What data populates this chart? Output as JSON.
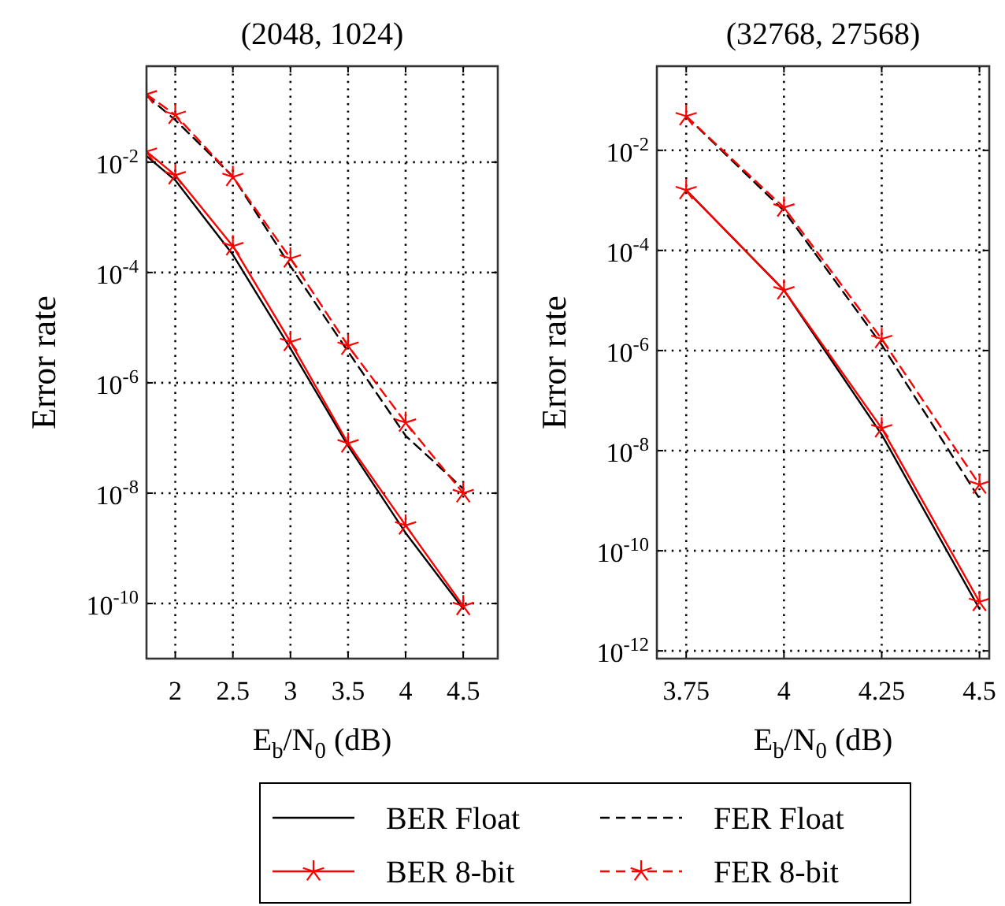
{
  "chart_data": [
    {
      "type": "line",
      "title": "(2048, 1024)",
      "xlabel": "E$_{b}$/N$_{0}$ (dB)",
      "ylabel": "Error rate",
      "log": "y",
      "grid": true,
      "legend": "bottom",
      "xlim": [
        1.75,
        4.8
      ],
      "ylim": [
        1e-11,
        0.55
      ],
      "xticks": [
        2,
        2.5,
        3,
        3.5,
        4,
        4.5
      ],
      "yticks": [
        {
          "value": 0.01,
          "label": "10$^{-2}$"
        },
        {
          "value": 0.0001,
          "label": "10$^{-4}$"
        },
        {
          "value": 1e-06,
          "label": "10$^{-6}$"
        },
        {
          "value": 1e-08,
          "label": "10$^{-8}$"
        },
        {
          "value": 1e-10,
          "label": "10$^{-10}$"
        }
      ],
      "x": [
        1.75,
        2,
        2.5,
        3,
        3.5,
        4,
        4.5
      ],
      "series": [
        {
          "name": "BER Float",
          "color": "#000000",
          "line_style": "solid",
          "marker": "none",
          "values": [
            0.013,
            0.0047,
            0.00021,
            4.2e-06,
            7.2e-08,
            1.9e-09,
            8e-11
          ]
        },
        {
          "name": "FER Float",
          "color": "#000000",
          "line_style": "dashed",
          "marker": "none",
          "values": [
            0.16,
            0.058,
            0.0055,
            0.00013,
            3.7e-06,
            1.1e-07,
            1.2e-08
          ]
        },
        {
          "name": "BER 8-bit",
          "color": "#ff0000",
          "line_style": "solid",
          "marker": "cross",
          "values": [
            0.0155,
            0.0058,
            0.0003,
            5.5e-06,
            8e-08,
            2.6e-09,
            9e-11
          ]
        },
        {
          "name": "FER 8-bit",
          "color": "#ff0000",
          "line_style": "dashed",
          "marker": "cross",
          "values": [
            0.17,
            0.072,
            0.0054,
            0.00018,
            4.7e-06,
            1.9e-07,
            1e-08
          ]
        }
      ]
    },
    {
      "type": "line",
      "title": "(32768, 27568)",
      "xlabel": "E$_{b}$/N$_{0}$ (dB)",
      "ylabel": "Error rate",
      "log": "y",
      "grid": true,
      "xlim": [
        3.675,
        4.525
      ],
      "ylim": [
        7e-13,
        0.48
      ],
      "xticks": [
        3.75,
        4,
        4.25,
        4.5
      ],
      "yticks": [
        {
          "value": 0.01,
          "label": "10$^{-2}$"
        },
        {
          "value": 0.0001,
          "label": "10$^{-4}$"
        },
        {
          "value": 1e-06,
          "label": "10$^{-6}$"
        },
        {
          "value": 1e-08,
          "label": "10$^{-8}$"
        },
        {
          "value": 1e-10,
          "label": "10$^{-10}$"
        },
        {
          "value": 1e-12,
          "label": "10$^{-12}$"
        }
      ],
      "x": [
        3.75,
        4,
        4.25,
        4.5
      ],
      "series": [
        {
          "color": "#000000",
          "line_style": "solid",
          "marker": "none",
          "values": [
            0.0016,
            1.6e-05,
            2.1e-08,
            6.9e-12
          ]
        },
        {
          "color": "#000000",
          "line_style": "dashed",
          "marker": "none",
          "values": [
            0.048,
            0.00062,
            1.3e-06,
            1.1e-09
          ]
        },
        {
          "color": "#ff0000",
          "line_style": "solid",
          "marker": "cross",
          "values": [
            0.0016,
            1.6e-05,
            2.8e-08,
            9.5e-12
          ]
        },
        {
          "color": "#ff0000",
          "line_style": "dashed",
          "marker": "cross",
          "values": [
            0.048,
            0.00072,
            1.7e-06,
            2.1e-09
          ]
        }
      ]
    }
  ]
}
